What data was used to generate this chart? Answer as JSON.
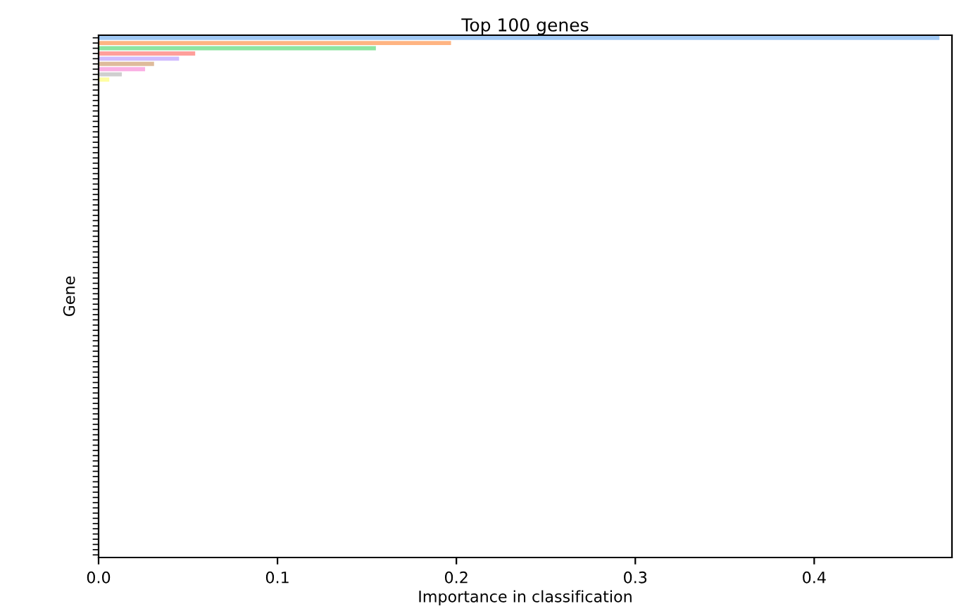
{
  "chart_data": {
    "type": "bar",
    "orientation": "horizontal",
    "title": "Top 100 genes",
    "xlabel": "Importance in classification",
    "ylabel": "Gene",
    "categories": [
      null,
      null,
      null,
      null,
      null,
      null,
      null,
      null,
      null,
      null,
      null,
      null,
      null,
      null,
      null,
      null,
      null,
      null,
      null,
      null,
      null,
      null,
      null,
      null,
      null,
      null,
      null,
      null,
      null,
      null,
      null,
      null,
      null,
      null,
      null,
      null,
      null,
      null,
      null,
      null,
      null,
      null,
      null,
      null,
      null,
      null,
      null,
      null,
      null,
      null,
      null,
      null,
      null,
      null,
      null,
      null,
      null,
      null,
      null,
      null,
      null,
      null,
      null,
      null,
      null,
      null,
      null,
      null,
      null,
      null,
      null,
      null,
      null,
      null,
      null,
      null,
      null,
      null,
      null,
      null,
      null,
      null,
      null,
      null,
      null,
      null,
      null,
      null,
      null,
      null,
      null,
      null,
      null,
      null,
      null,
      null,
      null,
      null,
      null,
      null
    ],
    "values": [
      0.47,
      0.197,
      0.155,
      0.054,
      0.045,
      0.031,
      0.026,
      0.013,
      0.006,
      0,
      0,
      0,
      0,
      0,
      0,
      0,
      0,
      0,
      0,
      0,
      0,
      0,
      0,
      0,
      0,
      0,
      0,
      0,
      0,
      0,
      0,
      0,
      0,
      0,
      0,
      0,
      0,
      0,
      0,
      0,
      0,
      0,
      0,
      0,
      0,
      0,
      0,
      0,
      0,
      0,
      0,
      0,
      0,
      0,
      0,
      0,
      0,
      0,
      0,
      0,
      0,
      0,
      0,
      0,
      0,
      0,
      0,
      0,
      0,
      0,
      0,
      0,
      0,
      0,
      0,
      0,
      0,
      0,
      0,
      0,
      0,
      0,
      0,
      0,
      0,
      0,
      0,
      0,
      0,
      0,
      0,
      0,
      0,
      0,
      0,
      0,
      0,
      0,
      0,
      0
    ],
    "colors": [
      "#a1c9f4",
      "#ffb482",
      "#8de5a1",
      "#ff9f9b",
      "#d0bbff",
      "#debb9b",
      "#fab0e4",
      "#cfcfcf",
      "#fffea3",
      "#b9f2f0",
      "#a1c9f4",
      "#ffb482",
      "#8de5a1",
      "#ff9f9b",
      "#d0bbff",
      "#debb9b",
      "#fab0e4",
      "#cfcfcf",
      "#fffea3",
      "#b9f2f0",
      "#a1c9f4",
      "#ffb482",
      "#8de5a1",
      "#ff9f9b",
      "#d0bbff",
      "#debb9b",
      "#fab0e4",
      "#cfcfcf",
      "#fffea3",
      "#b9f2f0",
      "#a1c9f4",
      "#ffb482",
      "#8de5a1",
      "#ff9f9b",
      "#d0bbff",
      "#debb9b",
      "#fab0e4",
      "#cfcfcf",
      "#fffea3",
      "#b9f2f0",
      "#a1c9f4",
      "#ffb482",
      "#8de5a1",
      "#ff9f9b",
      "#d0bbff",
      "#debb9b",
      "#fab0e4",
      "#cfcfcf",
      "#fffea3",
      "#b9f2f0",
      "#a1c9f4",
      "#ffb482",
      "#8de5a1",
      "#ff9f9b",
      "#d0bbff",
      "#debb9b",
      "#fab0e4",
      "#cfcfcf",
      "#fffea3",
      "#b9f2f0",
      "#a1c9f4",
      "#ffb482",
      "#8de5a1",
      "#ff9f9b",
      "#d0bbff",
      "#debb9b",
      "#fab0e4",
      "#cfcfcf",
      "#fffea3",
      "#b9f2f0",
      "#a1c9f4",
      "#ffb482",
      "#8de5a1",
      "#ff9f9b",
      "#d0bbff",
      "#debb9b",
      "#fab0e4",
      "#cfcfcf",
      "#fffea3",
      "#b9f2f0",
      "#a1c9f4",
      "#ffb482",
      "#8de5a1",
      "#ff9f9b",
      "#d0bbff",
      "#debb9b",
      "#fab0e4",
      "#cfcfcf",
      "#fffea3",
      "#b9f2f0",
      "#a1c9f4",
      "#ffb482",
      "#8de5a1",
      "#ff9f9b",
      "#d0bbff",
      "#debb9b",
      "#fab0e4",
      "#cfcfcf",
      "#fffea3",
      "#b9f2f0"
    ],
    "xlim": [
      0,
      0.477
    ],
    "xticks": [
      {
        "value": 0,
        "label": "0.0"
      },
      0.1,
      0.2,
      0.3,
      0.4
    ],
    "grid": false,
    "legend": false
  }
}
